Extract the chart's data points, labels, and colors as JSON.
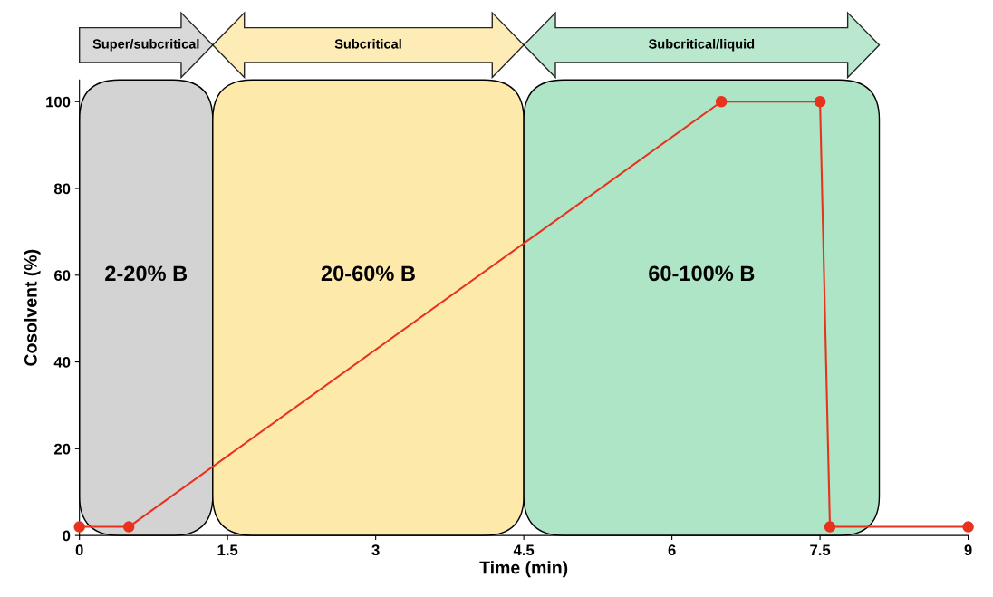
{
  "chart_data": {
    "type": "line",
    "xlabel": "Time (min)",
    "ylabel": "Cosolvent (%)",
    "x": [
      0,
      0.5,
      6.5,
      7.5,
      7.6,
      9
    ],
    "series": [
      {
        "color": "#e8321e",
        "values": [
          2,
          2,
          100,
          100,
          2,
          2
        ]
      }
    ],
    "marker": "circle",
    "line_style": "solid",
    "xlim": [
      0,
      9
    ],
    "xticks": [
      0,
      1.5,
      3,
      4.5,
      6,
      7.5,
      9
    ],
    "ylim": [
      0,
      105
    ],
    "yticks": [
      0,
      20,
      40,
      60,
      80,
      100
    ],
    "grid": false,
    "bands": [
      {
        "axis": "x",
        "from": 0,
        "to": 1.35,
        "label": "2-20% B",
        "color": "#d3d3d3"
      },
      {
        "axis": "x",
        "from": 1.35,
        "to": 4.5,
        "label": "20-60% B",
        "color": "#fde9a9"
      },
      {
        "axis": "x",
        "from": 4.5,
        "to": 8.1,
        "label": "60-100% B",
        "color": "#ade5c6"
      }
    ],
    "annotations": [
      "Super/subcritical",
      "Subcritical",
      "Subcritical/liquid"
    ]
  }
}
